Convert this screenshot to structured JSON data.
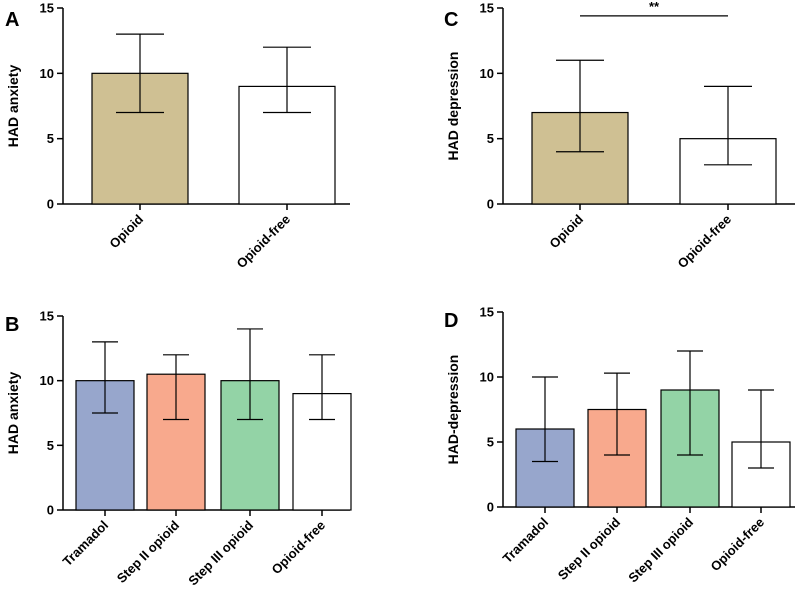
{
  "chart_data": [
    {
      "panel": "A",
      "type": "bar",
      "ylabel": "HAD anxiety",
      "ylim": [
        0,
        15
      ],
      "yticks": [
        0,
        5,
        10,
        15
      ],
      "categories": [
        "Opioid",
        "Opioid-free"
      ],
      "values": [
        10,
        9
      ],
      "error_low": [
        7,
        7
      ],
      "error_high": [
        13,
        12
      ],
      "colors": [
        "#cfc093",
        "#ffffff"
      ]
    },
    {
      "panel": "B",
      "type": "bar",
      "ylabel": "HAD anxiety",
      "ylim": [
        0,
        15
      ],
      "yticks": [
        0,
        5,
        10,
        15
      ],
      "categories": [
        "Tramadol",
        "Step II opioid",
        "Step III opioid",
        "Opioid-free"
      ],
      "values": [
        10,
        10.5,
        10,
        9
      ],
      "error_low": [
        7.5,
        7,
        7,
        7
      ],
      "error_high": [
        13,
        12,
        14,
        12
      ],
      "colors": [
        "#97a6cc",
        "#f8a98d",
        "#93d3a6",
        "#ffffff"
      ]
    },
    {
      "panel": "C",
      "type": "bar",
      "ylabel": "HAD depression",
      "ylim": [
        0,
        15
      ],
      "yticks": [
        0,
        5,
        10,
        15
      ],
      "categories": [
        "Opioid",
        "Opioid-free"
      ],
      "values": [
        7,
        5
      ],
      "error_low": [
        4,
        3
      ],
      "error_high": [
        11,
        9
      ],
      "colors": [
        "#cfc093",
        "#ffffff"
      ],
      "significance": {
        "from": 0,
        "to": 1,
        "level": 14.4,
        "label": "**"
      }
    },
    {
      "panel": "D",
      "type": "bar",
      "ylabel": "HAD-depression",
      "ylim": [
        0,
        15
      ],
      "yticks": [
        0,
        5,
        10,
        15
      ],
      "categories": [
        "Tramadol",
        "Step II opioid",
        "Step III opioid",
        "Opioid-free"
      ],
      "values": [
        6,
        7.5,
        9,
        5
      ],
      "error_low": [
        3.5,
        4,
        4,
        3
      ],
      "error_high": [
        10,
        10.3,
        12,
        9
      ],
      "colors": [
        "#97a6cc",
        "#f8a98d",
        "#93d3a6",
        "#ffffff"
      ]
    }
  ]
}
